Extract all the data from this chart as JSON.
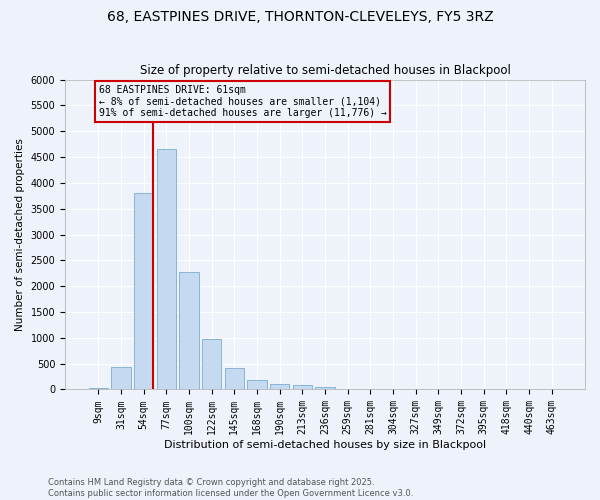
{
  "title": "68, EASTPINES DRIVE, THORNTON-CLEVELEYS, FY5 3RZ",
  "subtitle": "Size of property relative to semi-detached houses in Blackpool",
  "xlabel": "Distribution of semi-detached houses by size in Blackpool",
  "ylabel": "Number of semi-detached properties",
  "categories": [
    "9sqm",
    "31sqm",
    "54sqm",
    "77sqm",
    "100sqm",
    "122sqm",
    "145sqm",
    "168sqm",
    "190sqm",
    "213sqm",
    "236sqm",
    "259sqm",
    "281sqm",
    "304sqm",
    "327sqm",
    "349sqm",
    "372sqm",
    "395sqm",
    "418sqm",
    "440sqm",
    "463sqm"
  ],
  "values": [
    30,
    440,
    3800,
    4650,
    2280,
    980,
    420,
    175,
    100,
    80,
    50,
    10,
    5,
    3,
    2,
    1,
    1,
    0,
    0,
    0,
    0
  ],
  "bar_color": "#c5d9f0",
  "bar_edge_color": "#7aacd4",
  "vline_color": "#cc0000",
  "vline_bin_index": 2,
  "annotation_text": "68 EASTPINES DRIVE: 61sqm\n← 8% of semi-detached houses are smaller (1,104)\n91% of semi-detached houses are larger (11,776) →",
  "box_color": "#cc0000",
  "ylim": [
    0,
    6000
  ],
  "yticks": [
    0,
    500,
    1000,
    1500,
    2000,
    2500,
    3000,
    3500,
    4000,
    4500,
    5000,
    5500,
    6000
  ],
  "footer": "Contains HM Land Registry data © Crown copyright and database right 2025.\nContains public sector information licensed under the Open Government Licence v3.0.",
  "title_fontsize": 10,
  "subtitle_fontsize": 8.5,
  "xlabel_fontsize": 8,
  "ylabel_fontsize": 7.5,
  "tick_fontsize": 7,
  "annotation_fontsize": 7,
  "footer_fontsize": 6,
  "bg_color": "#eef2fa",
  "grid_color": "#ffffff"
}
